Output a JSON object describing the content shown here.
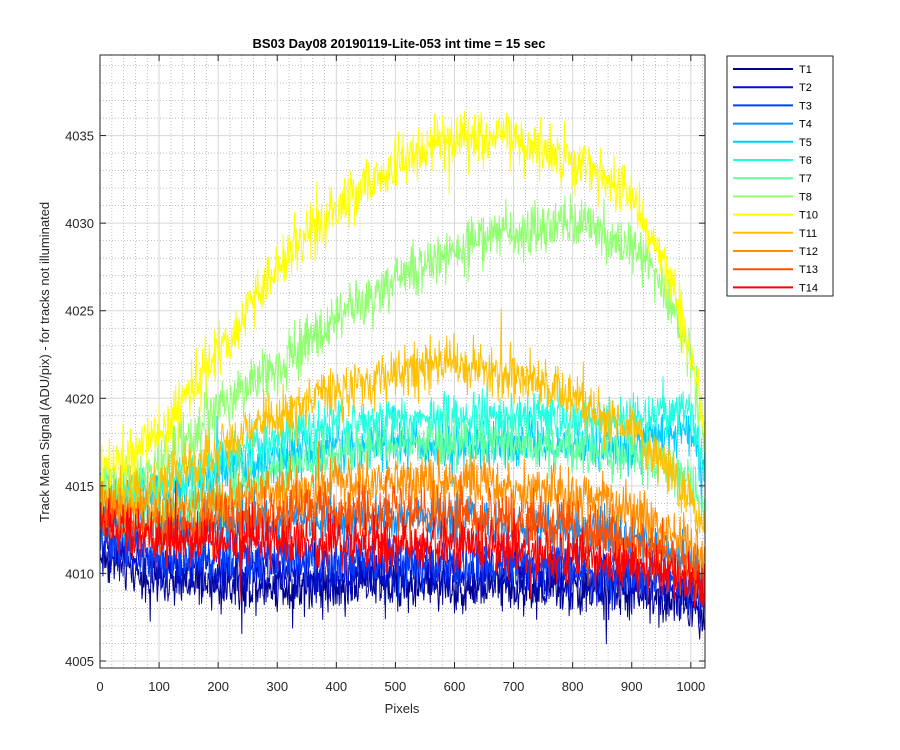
{
  "chart_data": {
    "type": "line",
    "title": "BS03 Day08 20190119-Lite-053 int time = 15 sec",
    "xlabel": "Pixels",
    "ylabel": "Track Mean Signal (ADU/pix) - for tracks not illuminated",
    "xlim": [
      0,
      1024
    ],
    "ylim": [
      4004.6,
      4039.6
    ],
    "xticks": [
      0,
      100,
      200,
      300,
      400,
      500,
      600,
      700,
      800,
      900,
      1000
    ],
    "yticks": [
      4005,
      4010,
      4015,
      4020,
      4025,
      4030,
      4035
    ],
    "grid": true,
    "minor_grid": true,
    "legend_position": "outside-right-top",
    "noise_note": "traces are noisy; values below are approximate smoothed means per series",
    "x": [
      0,
      100,
      200,
      300,
      400,
      500,
      600,
      700,
      800,
      900,
      950,
      1000,
      1024
    ],
    "series": [
      {
        "name": "T1",
        "color": "#00008f",
        "values": [
          4011.0,
          4009.5,
          4009.3,
          4009.3,
          4009.3,
          4009.4,
          4009.2,
          4009.3,
          4009.0,
          4008.8,
          4008.6,
          4008.2,
          4007.8
        ],
        "noise": 1.2
      },
      {
        "name": "T2",
        "color": "#0010cc",
        "values": [
          4011.8,
          4010.3,
          4010.2,
          4010.2,
          4010.0,
          4010.2,
          4010.0,
          4010.0,
          4009.7,
          4009.5,
          4009.2,
          4008.7,
          4008.2
        ],
        "noise": 1.2
      },
      {
        "name": "T3",
        "color": "#0040ff",
        "values": [
          4012.2,
          4011.0,
          4011.0,
          4011.0,
          4010.8,
          4010.8,
          4010.7,
          4010.6,
          4010.4,
          4010.0,
          4009.8,
          4009.3,
          4008.8
        ],
        "noise": 1.1
      },
      {
        "name": "T4",
        "color": "#0090ff",
        "values": [
          4013.2,
          4012.5,
          4012.8,
          4013.0,
          4013.0,
          4013.0,
          4012.9,
          4012.8,
          4012.5,
          4012.0,
          4011.5,
          4010.6,
          4009.8
        ],
        "noise": 1.1
      },
      {
        "name": "T5",
        "color": "#00ceff",
        "values": [
          4014.6,
          4014.6,
          4015.8,
          4016.6,
          4017.2,
          4017.4,
          4017.4,
          4017.4,
          4017.2,
          4017.2,
          4017.8,
          4018.2,
          4015.5
        ],
        "noise": 1.1
      },
      {
        "name": "T6",
        "color": "#20ffdf",
        "values": [
          4014.8,
          4015.0,
          4016.4,
          4017.8,
          4018.5,
          4018.8,
          4019.0,
          4019.0,
          4018.7,
          4018.8,
          4019.2,
          4019.5,
          4016.0
        ],
        "noise": 1.1
      },
      {
        "name": "T7",
        "color": "#60ffa0",
        "values": [
          4014.0,
          4013.2,
          4014.5,
          4015.8,
          4016.8,
          4017.3,
          4017.5,
          4017.4,
          4017.0,
          4016.6,
          4016.2,
          4015.0,
          4013.0
        ],
        "noise": 1.1
      },
      {
        "name": "T8",
        "color": "#90ff70",
        "values": [
          4015.0,
          4016.0,
          4019.5,
          4022.0,
          4024.5,
          4026.5,
          4028.5,
          4029.5,
          4030.0,
          4028.8,
          4026.5,
          4022.5,
          4017.0
        ],
        "noise": 1.3
      },
      {
        "name": "T10",
        "color": "#ffff00",
        "values": [
          4015.8,
          4018.0,
          4022.5,
          4027.5,
          4030.8,
          4033.5,
          4035.0,
          4034.8,
          4033.6,
          4031.5,
          4028.0,
          4023.0,
          4018.0
        ],
        "noise": 1.3
      },
      {
        "name": "T11",
        "color": "#ffc000",
        "values": [
          4014.2,
          4015.0,
          4017.2,
          4019.0,
          4020.4,
          4021.4,
          4021.9,
          4021.4,
          4020.0,
          4018.2,
          4016.4,
          4014.2,
          4012.5
        ],
        "noise": 1.2
      },
      {
        "name": "T12",
        "color": "#ff9000",
        "values": [
          4013.8,
          4013.6,
          4014.2,
          4014.8,
          4015.2,
          4015.3,
          4015.3,
          4015.0,
          4014.5,
          4013.6,
          4012.8,
          4011.6,
          4010.8
        ],
        "noise": 1.2
      },
      {
        "name": "T13",
        "color": "#ff5000",
        "values": [
          4013.4,
          4012.6,
          4013.0,
          4013.3,
          4013.4,
          4013.5,
          4013.3,
          4013.1,
          4012.6,
          4011.8,
          4011.0,
          4010.2,
          4009.6
        ],
        "noise": 1.2
      },
      {
        "name": "T14",
        "color": "#ff0000",
        "values": [
          4012.8,
          4011.8,
          4011.8,
          4011.8,
          4011.8,
          4011.8,
          4011.6,
          4011.4,
          4011.0,
          4010.5,
          4010.0,
          4009.5,
          4009.0
        ],
        "noise": 1.2
      }
    ]
  }
}
